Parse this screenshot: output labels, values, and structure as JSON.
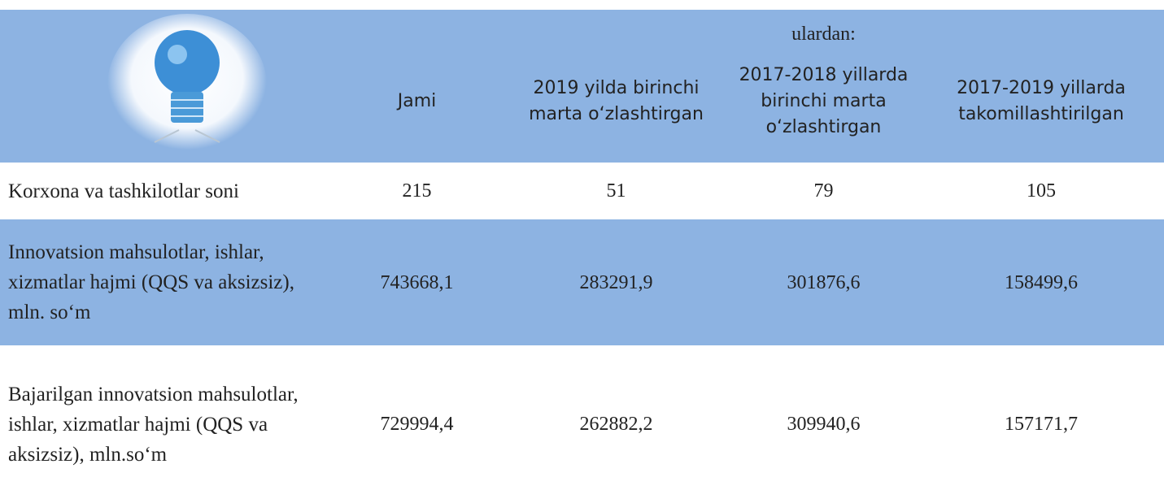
{
  "header": {
    "group_label": "ulardan:",
    "columns": [
      "Jami",
      "2019 yilda birinchi marta o‘zlashtirgan",
      "2017-2018 yillarda birinchi marta o‘zlashtirgan",
      "2017-2019 yillarda takomillashtirilgan"
    ]
  },
  "table": {
    "rows": [
      [
        "Korxona va tashkilotlar soni",
        "215",
        "51",
        "79",
        "105"
      ],
      [
        "Innovatsion mahsulotlar, ishlar, xizmatlar hajmi  (QQS va aksizsiz), mln. so‘m",
        "743668,1",
        "283291,9",
        "301876,6",
        "158499,6"
      ],
      [
        "Bajarilgan innovatsion mahsulotlar, ishlar, xizmatlar hajmi  (QQS va aksizsiz), mln.so‘m",
        "729994,4",
        "262882,2",
        "309940,6",
        "157171,7"
      ]
    ]
  }
}
